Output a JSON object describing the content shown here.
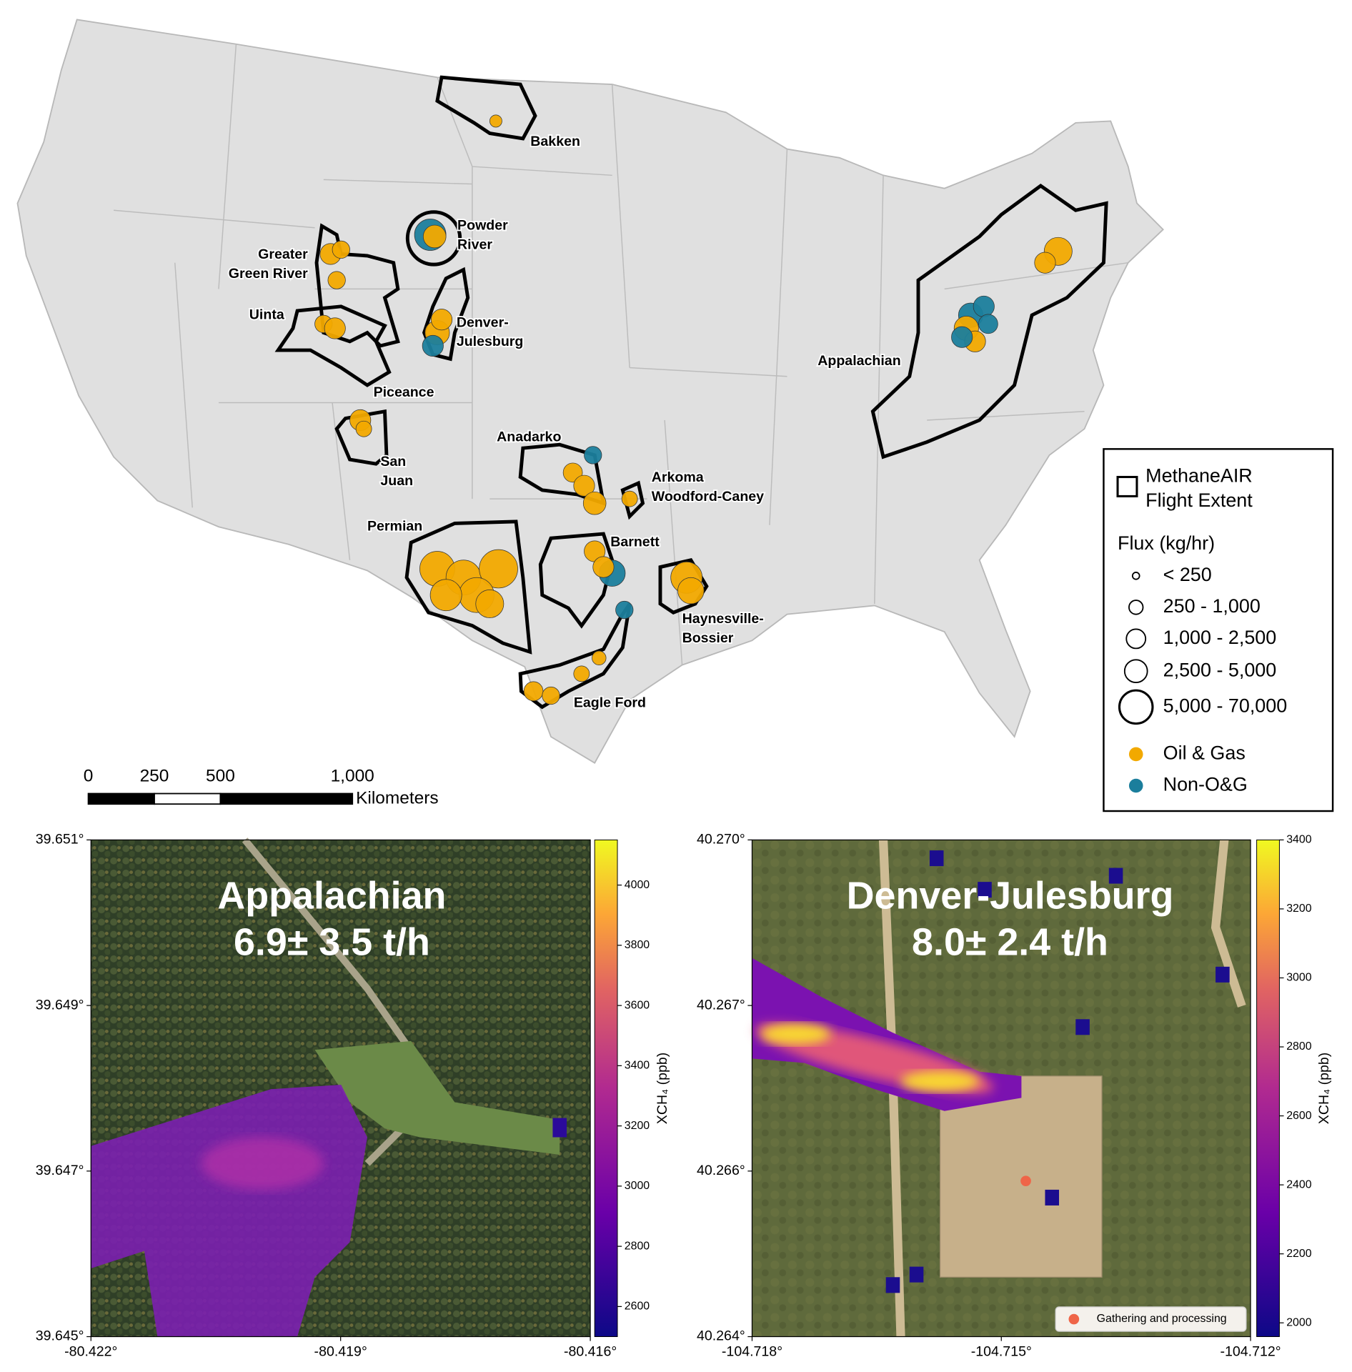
{
  "map": {
    "basins": [
      {
        "lines": [
          "Bakken"
        ]
      },
      {
        "lines": [
          "Powder",
          "River"
        ]
      },
      {
        "lines": [
          "Greater",
          "Green River"
        ]
      },
      {
        "lines": [
          "Uinta"
        ]
      },
      {
        "lines": [
          "Denver-",
          "Julesburg"
        ]
      },
      {
        "lines": [
          "Piceance"
        ]
      },
      {
        "lines": [
          "San",
          "Juan"
        ]
      },
      {
        "lines": [
          "Anadarko"
        ]
      },
      {
        "lines": [
          "Arkoma",
          "Woodford-Caney"
        ]
      },
      {
        "lines": [
          "Permian"
        ]
      },
      {
        "lines": [
          "Barnett"
        ]
      },
      {
        "lines": [
          "Haynesville-",
          "Bossier"
        ]
      },
      {
        "lines": [
          "Eagle Ford"
        ]
      },
      {
        "lines": [
          "Appalachian"
        ]
      }
    ],
    "legend": {
      "extent": [
        "MethaneAIR",
        "Flight Extent"
      ],
      "flux_title": "Flux (kg/hr)",
      "flux_classes": [
        "< 250",
        "250 - 1,000",
        "1,000 - 2,500",
        "2,500 - 5,000",
        "5,000 - 70,000"
      ],
      "sources": [
        {
          "name": "Oil & Gas",
          "color": "#f2a900"
        },
        {
          "name": "Non-O&G",
          "color": "#1b7e9c"
        }
      ]
    },
    "scale_bar": {
      "ticks": [
        0,
        250,
        500,
        {
          "value": 1000,
          "label": "1,000"
        }
      ],
      "unit": "Kilometers"
    }
  },
  "panels": [
    {
      "title": "Appalachian",
      "flux": "6.9± 3.5 t/h",
      "xticks": [
        "-80.422°",
        "-80.419°",
        "-80.416°"
      ],
      "yticks": [
        "39.651°",
        "39.649°",
        "39.647°",
        "39.645°"
      ],
      "colorbar": {
        "label": "XCH₄ (ppb)",
        "lim": [
          2500,
          4150
        ],
        "ticks": [
          2600,
          2800,
          3000,
          3200,
          3400,
          3600,
          3800,
          4000
        ]
      }
    },
    {
      "title": "Denver-Julesburg",
      "flux": "8.0± 2.4 t/h",
      "xticks": [
        "-104.718°",
        "-104.715°",
        "-104.712°"
      ],
      "yticks": [
        "40.270°",
        "40.267°",
        "40.266°",
        "40.264°"
      ],
      "colorbar": {
        "label": "XCH₄ (ppb)",
        "lim": [
          1960,
          3400
        ],
        "ticks": [
          2000,
          2200,
          2400,
          2600,
          2800,
          3000,
          3200,
          3400
        ]
      },
      "legend": "Gathering and processing"
    }
  ]
}
